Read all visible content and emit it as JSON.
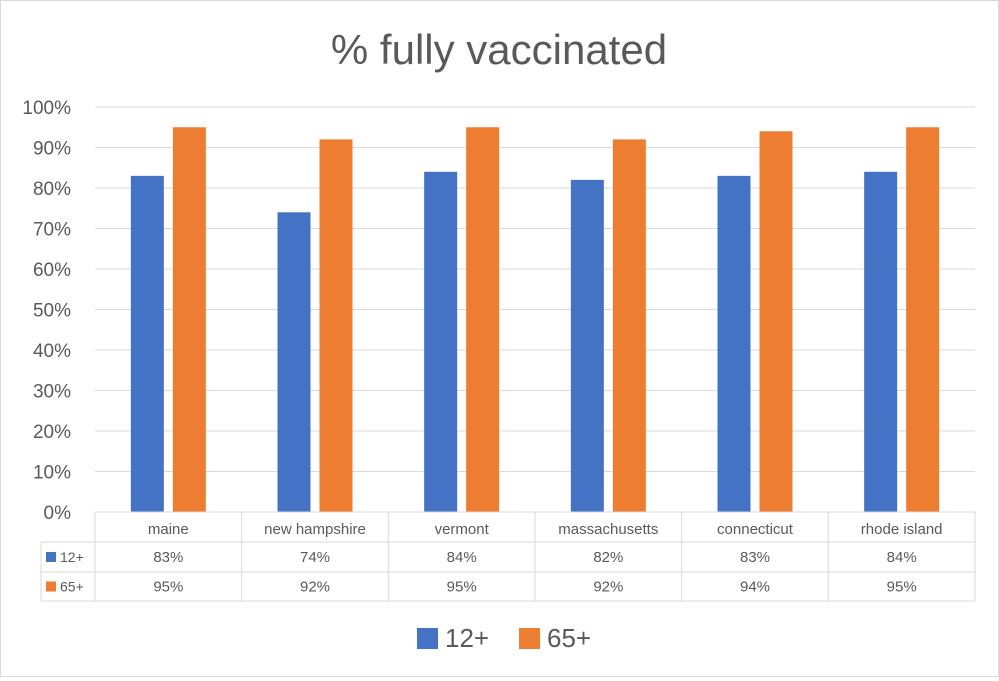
{
  "chart_data": {
    "type": "bar",
    "title": "% fully vaccinated",
    "categories": [
      "maine",
      "new hampshire",
      "vermont",
      "massachusetts",
      "connecticut",
      "rhode island"
    ],
    "series": [
      {
        "name": "12+",
        "color": "#4472c4",
        "values": [
          83,
          74,
          84,
          82,
          83,
          84
        ],
        "labels": [
          "83%",
          "74%",
          "84%",
          "82%",
          "83%",
          "84%"
        ]
      },
      {
        "name": "65+",
        "color": "#ed7d31",
        "values": [
          95,
          92,
          95,
          92,
          94,
          95
        ],
        "labels": [
          "95%",
          "92%",
          "95%",
          "92%",
          "94%",
          "95%"
        ]
      }
    ],
    "y_ticks": [
      "0%",
      "10%",
      "20%",
      "30%",
      "40%",
      "50%",
      "60%",
      "70%",
      "80%",
      "90%",
      "100%"
    ],
    "ylim": [
      0,
      100
    ],
    "grid": true,
    "data_table": true,
    "legend_position": "bottom"
  }
}
